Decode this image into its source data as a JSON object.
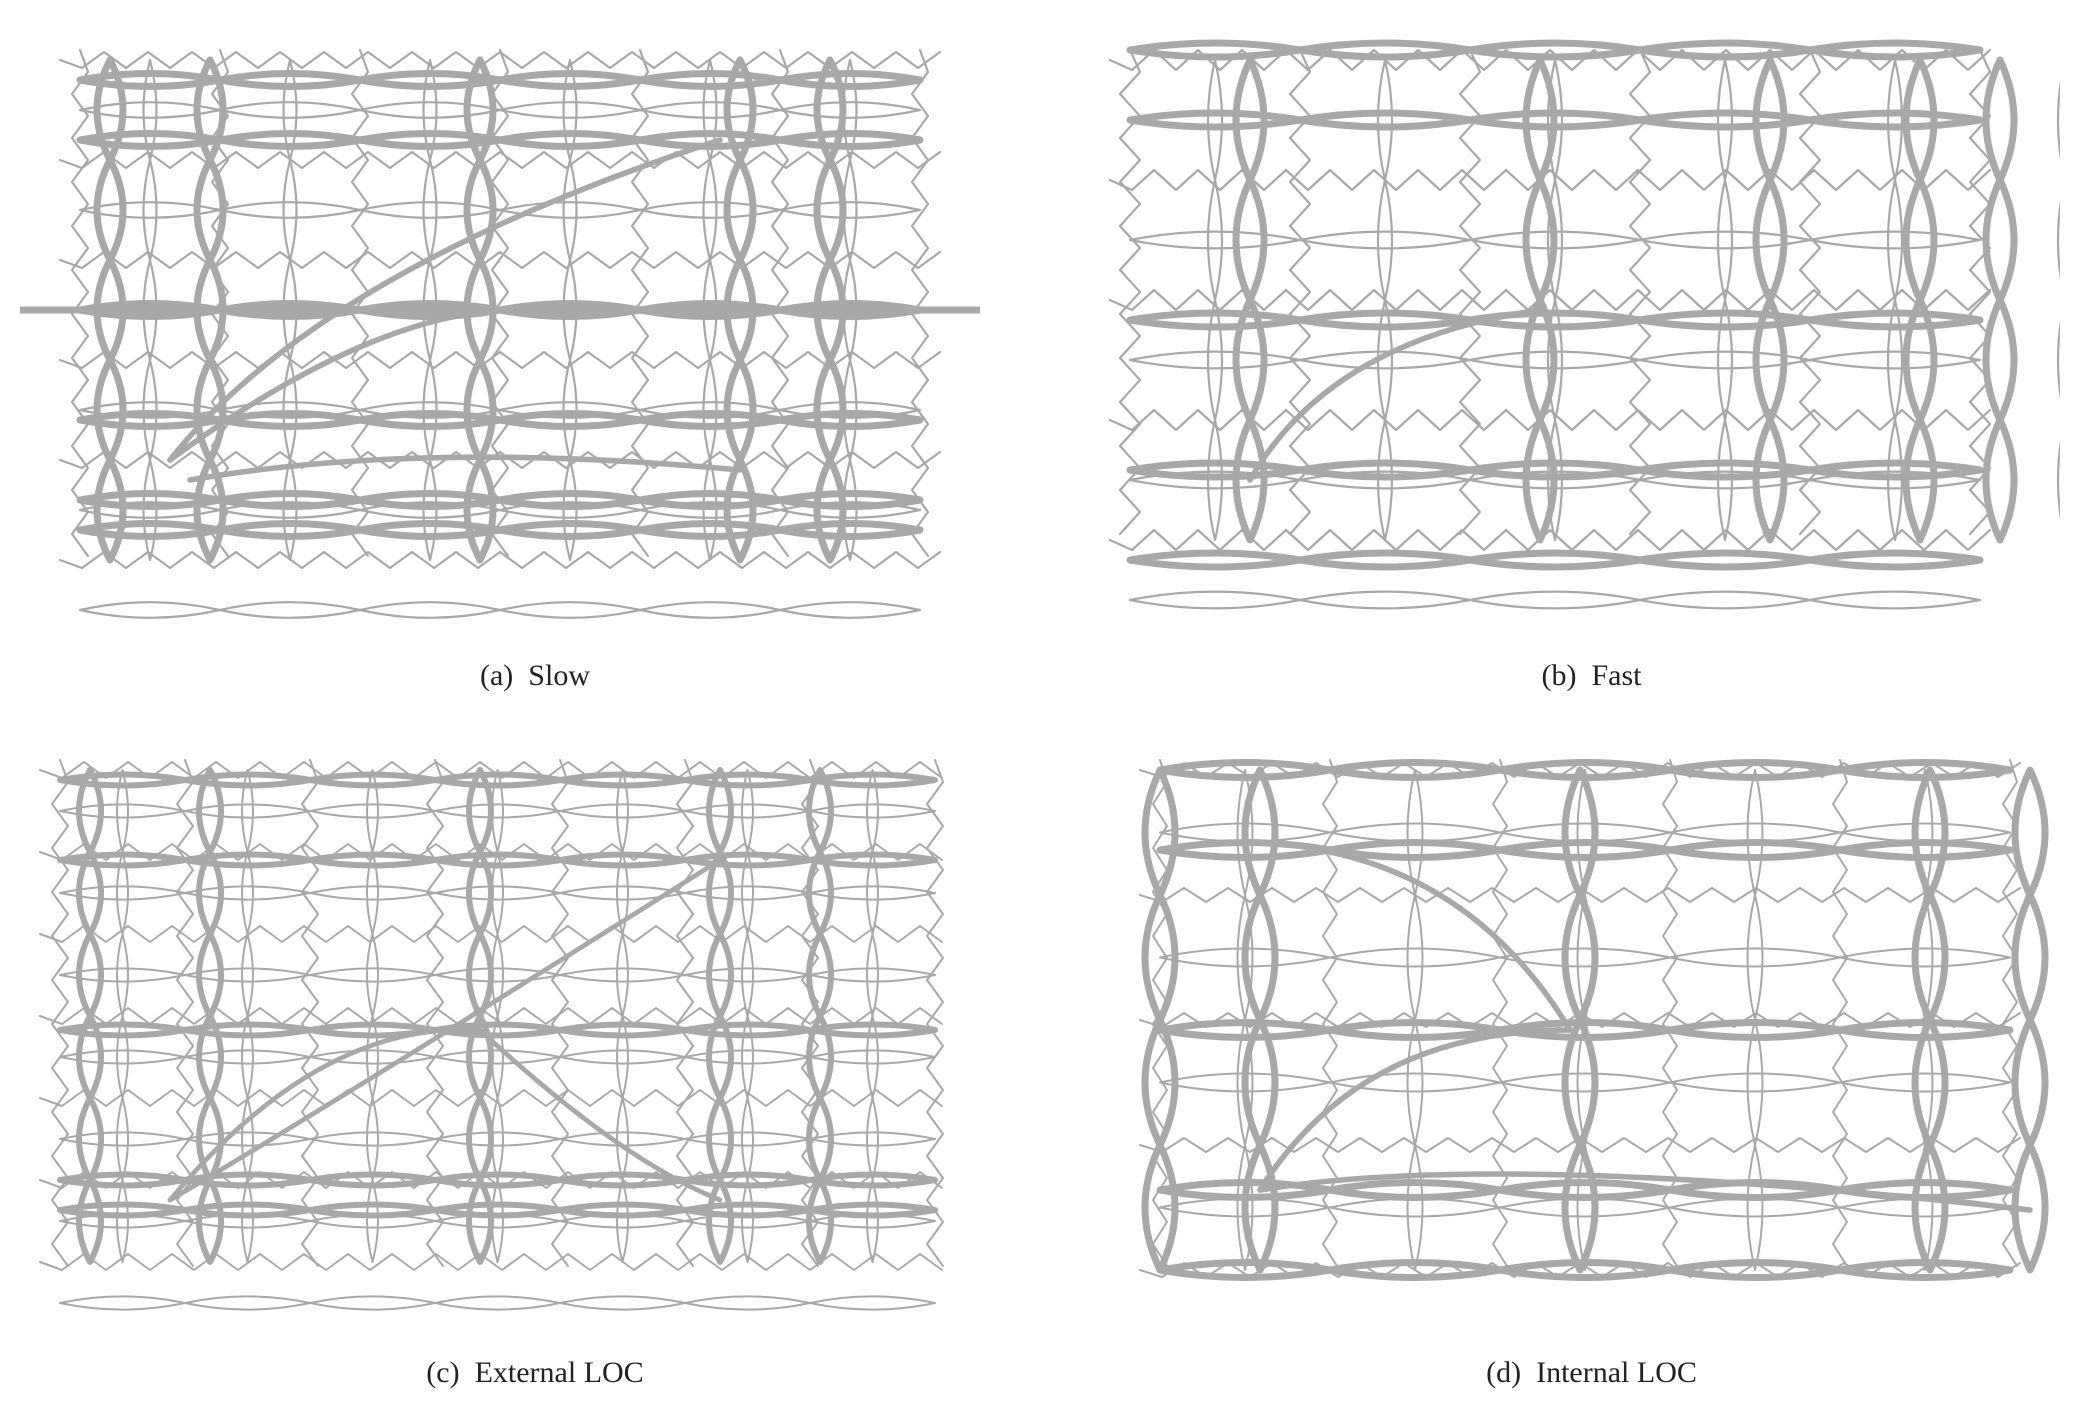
{
  "figure": {
    "panels": [
      {
        "label": "(a)",
        "title": "Slow"
      },
      {
        "label": "(b)",
        "title": "Fast"
      },
      {
        "label": "(c)",
        "title": "External LOC"
      },
      {
        "label": "(d)",
        "title": "Internal LOC"
      }
    ]
  }
}
